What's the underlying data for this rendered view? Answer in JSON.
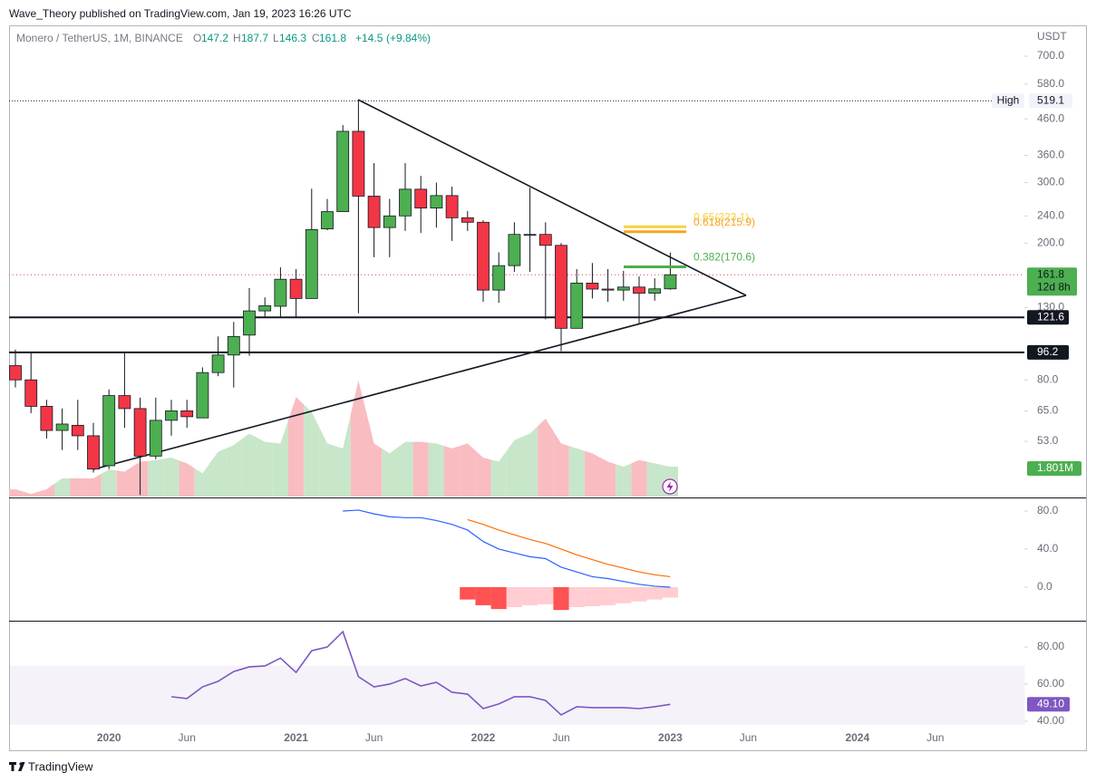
{
  "header": {
    "byline": "Wave_Theory published on TradingView.com, Jan 19, 2023 16:26 UTC"
  },
  "footer": {
    "brand": "TradingView"
  },
  "chart_data": {
    "type": "candlestick",
    "title": "Monero / TetherUS, 1M, BINANCE",
    "currency": "USDT",
    "legend_labels": [
      "O",
      "H",
      "L",
      "C"
    ],
    "change": {
      "value": 14.5,
      "label": "+14.5"
    },
    "change_percent": {
      "value": 9.84,
      "label": "(+9.84%)"
    },
    "categories": [
      null,
      null,
      null,
      null,
      null,
      null,
      "2020",
      null,
      null,
      null,
      null,
      "Jun",
      null,
      null,
      null,
      null,
      null,
      null,
      "2021",
      null,
      null,
      null,
      null,
      "Jun",
      null,
      null,
      null,
      null,
      null,
      null,
      "2022",
      null,
      null,
      null,
      null,
      "Jun",
      null,
      null,
      null,
      null,
      null,
      null,
      "2023",
      null,
      null,
      null,
      null,
      "Jun",
      null,
      null,
      null,
      null,
      null,
      null,
      "2024",
      null,
      null,
      null,
      null,
      "Jun"
    ],
    "open": [
      88,
      80,
      67,
      57,
      59,
      55,
      45,
      72,
      66,
      48,
      61,
      65,
      62,
      84,
      94.5,
      108,
      127,
      131,
      157,
      138,
      220,
      247,
      423,
      274,
      222,
      240,
      287,
      253,
      275,
      237,
      230,
      146,
      172,
      212,
      212,
      197,
      113,
      153,
      147,
      146,
      149,
      143,
      147.2,
      null,
      null,
      null,
      null,
      null,
      null,
      null,
      null,
      null,
      null,
      null,
      null,
      null,
      null,
      null,
      null,
      null
    ],
    "high": [
      98,
      96,
      70,
      66,
      70,
      60,
      75,
      96,
      71,
      71,
      70,
      70,
      87,
      107,
      118,
      148,
      139,
      170,
      168,
      288,
      269,
      441,
      519.1,
      342,
      269,
      342,
      314,
      300,
      292,
      248,
      233,
      188,
      230,
      290,
      230,
      200,
      168,
      175,
      168,
      166,
      160,
      158,
      187.7,
      null,
      null,
      null,
      null,
      null,
      null,
      null,
      null,
      null,
      null,
      null,
      null,
      null,
      null,
      null,
      null,
      null
    ],
    "low": [
      76,
      64,
      54,
      50,
      50,
      43,
      44,
      58,
      37,
      47,
      55,
      58,
      62,
      82,
      76,
      94,
      122,
      121,
      121,
      138,
      218,
      247,
      125,
      182,
      182,
      217,
      214,
      222,
      203,
      217,
      135,
      134,
      165,
      165,
      120,
      97,
      113,
      138,
      135,
      136,
      117,
      136,
      146.3,
      null,
      null,
      null,
      null,
      null,
      null,
      null,
      null,
      null,
      null,
      null,
      null,
      null,
      null,
      null,
      null,
      null
    ],
    "close": [
      80,
      67,
      57,
      59.5,
      55,
      44,
      72,
      66,
      48,
      61,
      65,
      62.5,
      84,
      94.5,
      107,
      127,
      131.5,
      157,
      138,
      219,
      247,
      423,
      274,
      222,
      240,
      287,
      253,
      275,
      237,
      230,
      146,
      172,
      212,
      212,
      197,
      113,
      153,
      147,
      146,
      149,
      143,
      147.2,
      161.8,
      null,
      null,
      null,
      null,
      null,
      null,
      null,
      null,
      null,
      null,
      null,
      null,
      null,
      null,
      null,
      null,
      null
    ],
    "up_color": "#4caf50",
    "down_color": "#f23645",
    "log_scale": true,
    "grid": false,
    "ylim": [
      36.6,
      850
    ],
    "yticks": [
      {
        "value": 700,
        "label": "700.0"
      },
      {
        "value": 580,
        "label": "580.0"
      },
      {
        "value": 460,
        "label": "460.0"
      },
      {
        "value": 360,
        "label": "360.0"
      },
      {
        "value": 300,
        "label": "300.0"
      },
      {
        "value": 240,
        "label": "240.0"
      },
      {
        "value": 200,
        "label": "200.0"
      },
      {
        "value": 130,
        "label": "130.0"
      },
      {
        "value": 80,
        "label": "80.0"
      },
      {
        "value": 65,
        "label": "65.0"
      },
      {
        "value": 53,
        "label": "53.0"
      }
    ],
    "volume": {
      "values": [
        0.44,
        0.16,
        0.44,
        1.1,
        1.1,
        1.1,
        1.64,
        1.5,
        2.1,
        2.2,
        2.35,
        2.0,
        1.4,
        2.7,
        3.1,
        3.8,
        3.3,
        3.2,
        6.0,
        5.1,
        3.2,
        2.9,
        7.0,
        3.2,
        2.6,
        3.3,
        3.3,
        3.2,
        2.9,
        3.2,
        2.35,
        2.1,
        3.4,
        3.8,
        4.7,
        3.2,
        2.9,
        2.6,
        2.1,
        1.8,
        2.2,
        2.0,
        1.801,
        null,
        null,
        null,
        null,
        null,
        null,
        null,
        null,
        null,
        null,
        null,
        null,
        null,
        null,
        null,
        null,
        null
      ],
      "ylim": [
        0,
        28.3
      ],
      "up_color": "#c8e6c9",
      "down_color": "#f9bcc1",
      "last_value_label": "1.801M"
    },
    "high_marker": {
      "label": "High",
      "value": 519.1
    },
    "countdown": "12d 8h",
    "levels": [
      121.6,
      96.2
    ],
    "fib_levels": [
      {
        "value": 223.1,
        "label": "0.65(223.1)",
        "color": "#f7d23c"
      },
      {
        "value": 215.9,
        "label": "0.618(215.9)",
        "color": "#f5a623"
      },
      {
        "value": 170.6,
        "label": "0.382(170.6)",
        "color": "#4caf50"
      }
    ],
    "macd": {
      "ylim": [
        -34.3,
        93.3
      ],
      "yticks": [
        {
          "value": 80,
          "label": "80.0"
        },
        {
          "value": 40,
          "label": "40.0"
        },
        {
          "value": 0,
          "label": "0.0"
        }
      ],
      "lines": [
        {
          "color": "#2962ff",
          "values": [
            null,
            null,
            null,
            null,
            null,
            null,
            null,
            null,
            null,
            null,
            null,
            null,
            null,
            null,
            null,
            null,
            null,
            null,
            null,
            null,
            null,
            80,
            81,
            77,
            74,
            73,
            73,
            70,
            66,
            60,
            48,
            40,
            36,
            32,
            30,
            21,
            16,
            11,
            9,
            6,
            3,
            1,
            0,
            null,
            null,
            null,
            null,
            null,
            null,
            null,
            null,
            null,
            null,
            null,
            null,
            null,
            null,
            null,
            null,
            null
          ]
        },
        {
          "color": "#ff6d00",
          "values": [
            null,
            null,
            null,
            null,
            null,
            null,
            null,
            null,
            null,
            null,
            null,
            null,
            null,
            null,
            null,
            null,
            null,
            null,
            null,
            null,
            null,
            null,
            null,
            null,
            null,
            null,
            null,
            null,
            null,
            71,
            66,
            60,
            55,
            50,
            46,
            40,
            34,
            29,
            24,
            20,
            16,
            13,
            11,
            null,
            null,
            null,
            null,
            null,
            null,
            null,
            null,
            null,
            null,
            null,
            null,
            null,
            null,
            null,
            null,
            null
          ]
        }
      ],
      "histogram": {
        "values": [
          null,
          null,
          null,
          null,
          null,
          null,
          null,
          null,
          null,
          null,
          null,
          null,
          null,
          null,
          null,
          null,
          null,
          null,
          null,
          null,
          null,
          null,
          null,
          null,
          null,
          null,
          null,
          null,
          null,
          -13,
          -19,
          -23,
          -21,
          -19,
          -18,
          -24,
          -21,
          -20,
          -19,
          -17,
          -15,
          -13,
          -11,
          null,
          null,
          null,
          null,
          null,
          null,
          null,
          null,
          null,
          null,
          null,
          null,
          null,
          null,
          null,
          null,
          null
        ],
        "falling_color": "#ff5252",
        "rising_color": "#ffcdd2"
      }
    },
    "rsi": {
      "ylim": [
        38,
        93.7
      ],
      "yticks": [
        {
          "value": 80,
          "label": "80.00"
        },
        {
          "value": 60,
          "label": "60.00"
        },
        {
          "value": 40,
          "label": "40.00"
        }
      ],
      "color": "#7e57c2",
      "band": [
        30,
        70
      ],
      "values": [
        null,
        null,
        null,
        null,
        null,
        null,
        null,
        null,
        null,
        null,
        53.2,
        52.2,
        58.5,
        61.5,
        66.8,
        69.3,
        69.8,
        74,
        66.3,
        78,
        80,
        88.3,
        64,
        58.5,
        60,
        63,
        59,
        61,
        55.6,
        54.6,
        46.8,
        49.3,
        53.2,
        53.2,
        51.2,
        43.4,
        47.8,
        47.3,
        47.3,
        47.3,
        46.8,
        47.8,
        49.1,
        null,
        null,
        null,
        null,
        null,
        null,
        null,
        null,
        null,
        null,
        null,
        null,
        null,
        null,
        null,
        null,
        null
      ],
      "last_value_label": "49.10"
    }
  }
}
